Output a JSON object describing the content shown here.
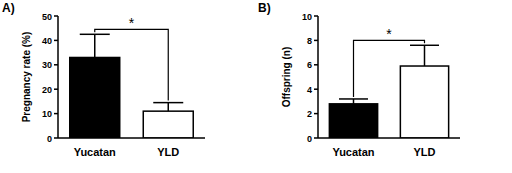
{
  "chart_data": [
    {
      "type": "bar",
      "title": "A)",
      "ylabel": "Pregnancy rate (%)",
      "categories": [
        "Yucatan",
        "YLD"
      ],
      "values": [
        33,
        11
      ],
      "errors": [
        9.5,
        3.5
      ],
      "colors": [
        "#000000",
        "#ffffff"
      ],
      "ylim": [
        0,
        50
      ],
      "yticks": [
        0,
        10,
        20,
        30,
        40,
        50
      ],
      "grid": false,
      "annotations": [
        "*"
      ]
    },
    {
      "type": "bar",
      "title": "B)",
      "ylabel": "Offspring (n)",
      "categories": [
        "Yucatan",
        "YLD"
      ],
      "values": [
        2.8,
        5.9
      ],
      "errors": [
        0.4,
        1.7
      ],
      "colors": [
        "#000000",
        "#ffffff"
      ],
      "ylim": [
        0,
        10
      ],
      "yticks": [
        0,
        2,
        4,
        6,
        8,
        10
      ],
      "grid": false,
      "annotations": [
        "*"
      ]
    }
  ]
}
